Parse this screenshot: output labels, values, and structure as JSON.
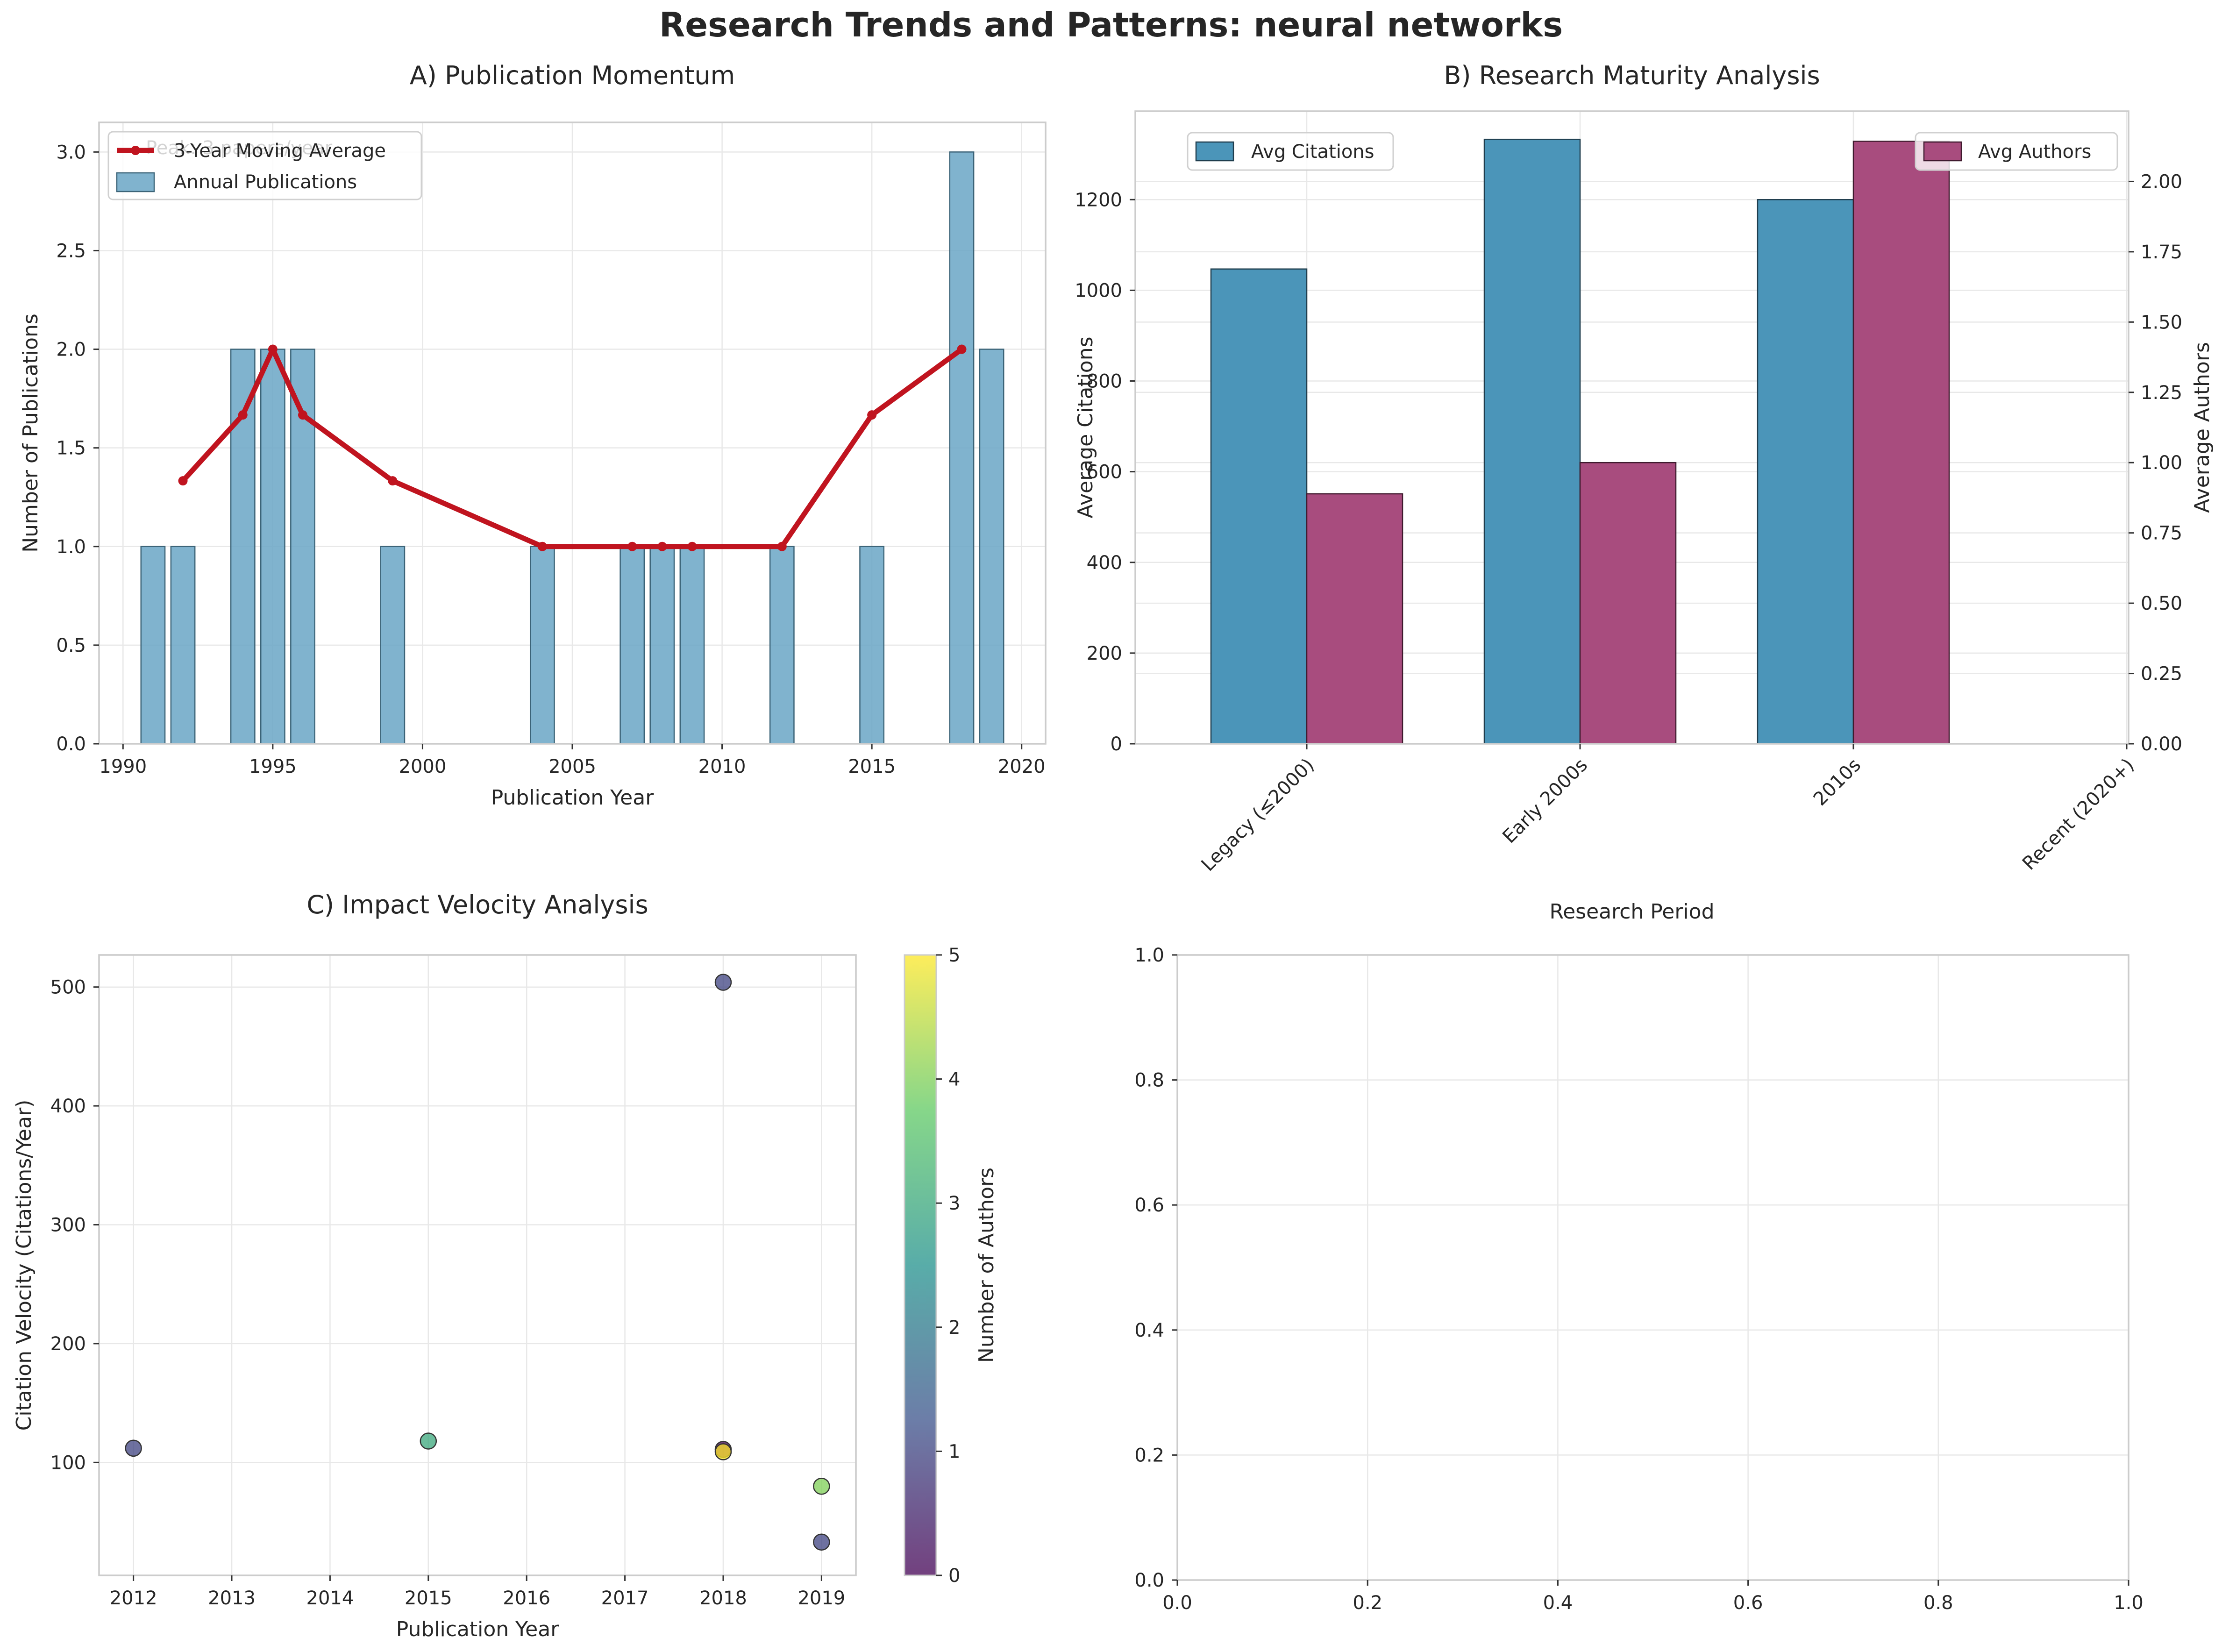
{
  "figure_title": "Research Trends and Patterns: neural networks",
  "chart_data": [
    {
      "id": "A",
      "type": "bar",
      "title": "A) Publication Momentum",
      "xlabel": "Publication Year",
      "ylabel": "Number of Publications",
      "xlim": [
        1989.2,
        2020.8
      ],
      "ylim": [
        0,
        3.15
      ],
      "xticks": [
        1990,
        1995,
        2000,
        2005,
        2010,
        2015,
        2020
      ],
      "yticks": [
        0.0,
        0.5,
        1.0,
        1.5,
        2.0,
        2.5,
        3.0
      ],
      "ytick_labels": [
        "0.0",
        "0.5",
        "1.0",
        "1.5",
        "2.0",
        "2.5",
        "3.0"
      ],
      "bar_color": "#6aa6c6",
      "line_color": "#c0141f",
      "annotation": "Peak: 3 papers/year",
      "series": [
        {
          "name": "Annual Publications",
          "kind": "bar",
          "x": [
            1991,
            1992,
            1994,
            1995,
            1996,
            1999,
            2004,
            2007,
            2008,
            2009,
            2012,
            2015,
            2018,
            2019
          ],
          "values": [
            1,
            1,
            2,
            2,
            2,
            1,
            1,
            1,
            1,
            1,
            1,
            1,
            3,
            2
          ]
        },
        {
          "name": "3-Year Moving Average",
          "kind": "line",
          "x": [
            1992,
            1994,
            1995,
            1996,
            1999,
            2004,
            2007,
            2008,
            2009,
            2012,
            2015,
            2018
          ],
          "values": [
            1.333,
            1.667,
            2.0,
            1.667,
            1.333,
            1.0,
            1.0,
            1.0,
            1.0,
            1.0,
            1.667,
            2.0
          ]
        }
      ],
      "legend": [
        "3-Year Moving Average",
        "Annual Publications"
      ],
      "legend_position": "upper-left"
    },
    {
      "id": "B",
      "type": "bar",
      "title": "B) Research Maturity Analysis",
      "xlabel": "Research Period",
      "ylabel": "Average Citations",
      "ylabel_right": "Average Authors",
      "ylabel_color": "#2e86ab",
      "ylabel_right_color": "#a23b72",
      "categories": [
        "Legacy (≤2000)",
        "Early 2000s",
        "2010s",
        "Recent (2020+)"
      ],
      "ylim": [
        0,
        1395
      ],
      "ylim_right": [
        0,
        2.25
      ],
      "yticks": [
        0,
        200,
        400,
        600,
        800,
        1000,
        1200
      ],
      "yticks_right": [
        0.0,
        0.25,
        0.5,
        0.75,
        1.0,
        1.25,
        1.5,
        1.75,
        2.0
      ],
      "yticks_right_labels": [
        "0.00",
        "0.25",
        "0.50",
        "0.75",
        "1.00",
        "1.25",
        "1.50",
        "1.75",
        "2.00"
      ],
      "series": [
        {
          "name": "Avg Citations",
          "axis": "left",
          "color": "#4b95b9",
          "values": [
            1047,
            1333,
            1200,
            0
          ]
        },
        {
          "name": "Avg Authors",
          "axis": "right",
          "color": "#a84c7e",
          "values": [
            0.889,
            1.0,
            2.143,
            0
          ]
        }
      ],
      "legend_left": "Avg Citations",
      "legend_right": "Avg Authors"
    },
    {
      "id": "C",
      "type": "scatter",
      "title": "C) Impact Velocity Analysis",
      "xlabel": "Publication Year",
      "ylabel": "Citation Velocity (Citations/Year)",
      "xlim": [
        2011.65,
        2019.35
      ],
      "ylim": [
        5,
        527
      ],
      "xticks": [
        2012,
        2013,
        2014,
        2015,
        2016,
        2017,
        2018,
        2019
      ],
      "yticks": [
        100,
        200,
        300,
        400,
        500
      ],
      "colorbar_label": "Number of Authors",
      "colorbar_range": [
        0,
        5
      ],
      "colorbar_ticks": [
        0,
        1,
        2,
        3,
        4,
        5
      ],
      "points": [
        {
          "x": 2012,
          "y": 112,
          "authors": 1
        },
        {
          "x": 2015,
          "y": 118,
          "authors": 3
        },
        {
          "x": 2018,
          "y": 504,
          "authors": 1
        },
        {
          "x": 2018,
          "y": 111,
          "authors": 0
        },
        {
          "x": 2018,
          "y": 109,
          "authors": 5
        },
        {
          "x": 2019,
          "y": 80,
          "authors": 4
        },
        {
          "x": 2019,
          "y": 33,
          "authors": 1
        }
      ]
    },
    {
      "id": "D",
      "type": "scatter",
      "title": "",
      "xlim": [
        0,
        1
      ],
      "ylim": [
        0,
        1
      ],
      "xticks": [
        0.0,
        0.2,
        0.4,
        0.6,
        0.8,
        1.0
      ],
      "yticks": [
        0.0,
        0.2,
        0.4,
        0.6,
        0.8,
        1.0
      ],
      "xtick_labels": [
        "0.0",
        "0.2",
        "0.4",
        "0.6",
        "0.8",
        "1.0"
      ],
      "ytick_labels": [
        "0.0",
        "0.2",
        "0.4",
        "0.6",
        "0.8",
        "1.0"
      ],
      "points": []
    }
  ]
}
